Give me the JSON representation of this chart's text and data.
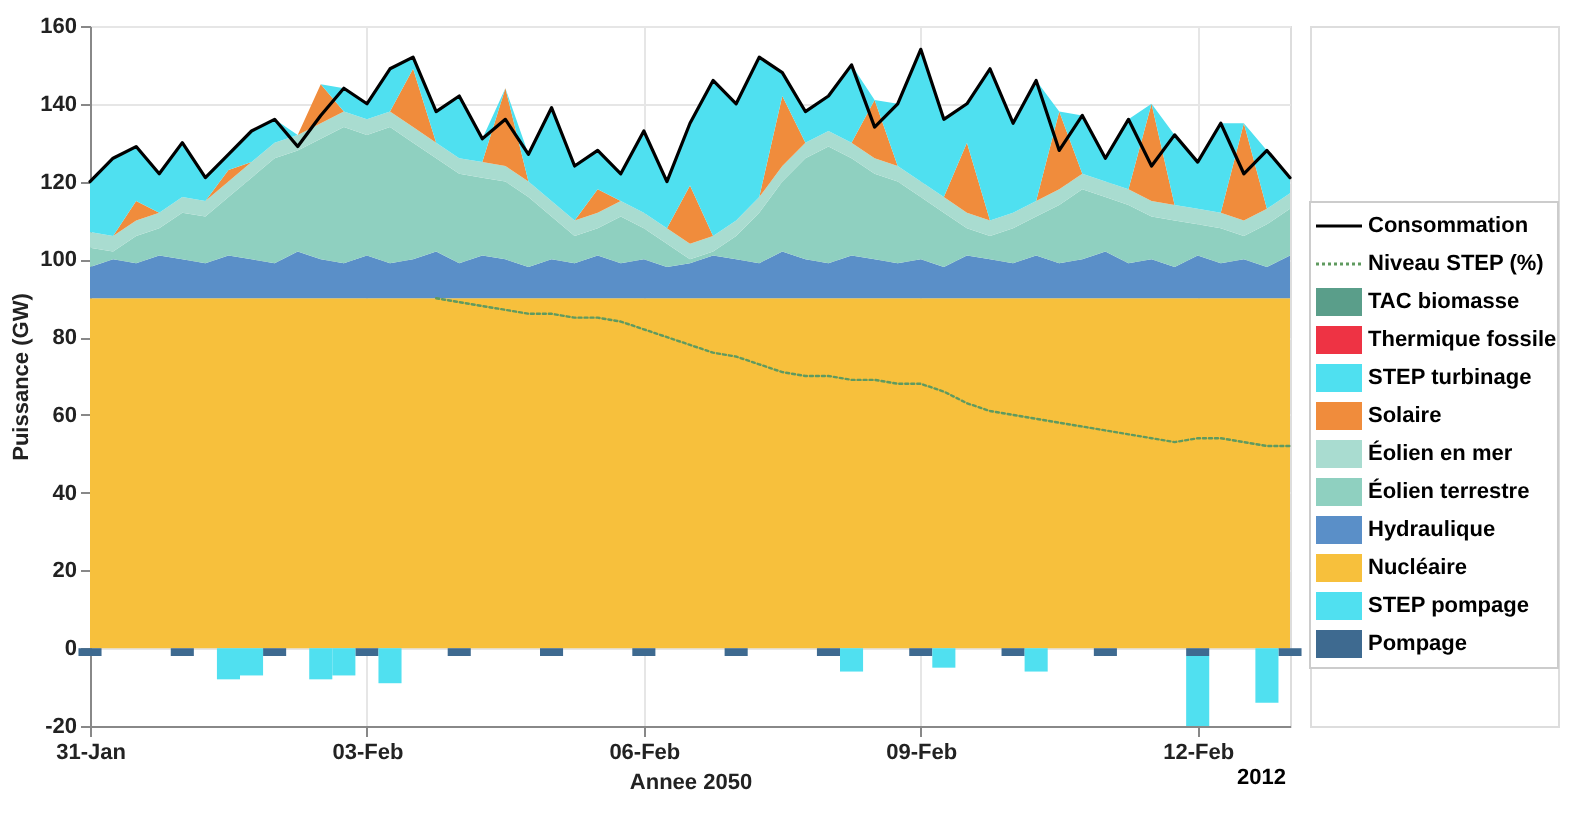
{
  "chart_data": {
    "type": "area",
    "stacked": true,
    "xlabel": "Annee 2050",
    "ylabel": "Puissance (GW)",
    "annotations": [
      "2012"
    ],
    "xlim": [
      "2012-01-31",
      "2012-02-13"
    ],
    "xticks": [
      {
        "value": "2012-01-31",
        "label": "31-Jan"
      },
      {
        "value": "2012-02-03",
        "label": "03-Feb"
      },
      {
        "value": "2012-02-06",
        "label": "06-Feb"
      },
      {
        "value": "2012-02-09",
        "label": "09-Feb"
      },
      {
        "value": "2012-02-12",
        "label": "12-Feb"
      }
    ],
    "ylim": [
      -20,
      160
    ],
    "yticks": [
      -20,
      0,
      20,
      40,
      60,
      80,
      100,
      120,
      140,
      160
    ],
    "grid": true,
    "legend": "right",
    "x": [
      "2012-01-31T00:00",
      "2012-01-31T06:00",
      "2012-01-31T12:00",
      "2012-01-31T18:00",
      "2012-02-01T00:00",
      "2012-02-01T06:00",
      "2012-02-01T12:00",
      "2012-02-01T18:00",
      "2012-02-02T00:00",
      "2012-02-02T06:00",
      "2012-02-02T12:00",
      "2012-02-02T18:00",
      "2012-02-03T00:00",
      "2012-02-03T06:00",
      "2012-02-03T12:00",
      "2012-02-03T18:00",
      "2012-02-04T00:00",
      "2012-02-04T06:00",
      "2012-02-04T12:00",
      "2012-02-04T18:00",
      "2012-02-05T00:00",
      "2012-02-05T06:00",
      "2012-02-05T12:00",
      "2012-02-05T18:00",
      "2012-02-06T00:00",
      "2012-02-06T06:00",
      "2012-02-06T12:00",
      "2012-02-06T18:00",
      "2012-02-07T00:00",
      "2012-02-07T06:00",
      "2012-02-07T12:00",
      "2012-02-07T18:00",
      "2012-02-08T00:00",
      "2012-02-08T06:00",
      "2012-02-08T12:00",
      "2012-02-08T18:00",
      "2012-02-09T00:00",
      "2012-02-09T06:00",
      "2012-02-09T12:00",
      "2012-02-09T18:00",
      "2012-02-10T00:00",
      "2012-02-10T06:00",
      "2012-02-10T12:00",
      "2012-02-10T18:00",
      "2012-02-11T00:00",
      "2012-02-11T06:00",
      "2012-02-11T12:00",
      "2012-02-11T18:00",
      "2012-02-12T00:00",
      "2012-02-12T06:00",
      "2012-02-12T12:00",
      "2012-02-12T18:00",
      "2012-02-13T00:00"
    ],
    "series": [
      {
        "name": "Consommation",
        "type": "line",
        "line_style": "solid",
        "color": "#000000",
        "values": [
          120,
          126,
          129,
          122,
          130,
          121,
          127,
          133,
          136,
          129,
          137,
          144,
          140,
          149,
          152,
          138,
          142,
          131,
          136,
          127,
          139,
          124,
          128,
          122,
          133,
          120,
          135,
          146,
          140,
          152,
          148,
          138,
          142,
          150,
          134,
          140,
          154,
          136,
          140,
          149,
          135,
          146,
          128,
          137,
          126,
          136,
          124,
          132,
          125,
          135,
          122,
          128,
          121
        ]
      },
      {
        "name": "Niveau STEP (%)",
        "type": "line",
        "line_style": "dotted",
        "color": "#5f9a5f",
        "values": [
          null,
          null,
          null,
          null,
          null,
          null,
          null,
          null,
          null,
          null,
          null,
          null,
          null,
          null,
          null,
          90,
          89,
          88,
          87,
          86,
          86,
          85,
          85,
          84,
          82,
          80,
          78,
          76,
          75,
          73,
          71,
          70,
          70,
          69,
          69,
          68,
          68,
          66,
          63,
          61,
          60,
          59,
          58,
          57,
          56,
          55,
          54,
          53,
          54,
          54,
          53,
          52,
          52
        ]
      },
      {
        "name": "Nucléaire",
        "color": "#f7c03c",
        "values": [
          90,
          90,
          90,
          90,
          90,
          90,
          90,
          90,
          90,
          90,
          90,
          90,
          90,
          90,
          90,
          90,
          90,
          90,
          90,
          90,
          90,
          90,
          90,
          90,
          90,
          90,
          90,
          90,
          90,
          90,
          90,
          90,
          90,
          90,
          90,
          90,
          90,
          90,
          90,
          90,
          90,
          90,
          90,
          90,
          90,
          90,
          90,
          90,
          90,
          90,
          90,
          90,
          90
        ]
      },
      {
        "name": "Hydraulique",
        "color": "#5a8fc8",
        "values": [
          8,
          10,
          9,
          11,
          10,
          9,
          11,
          10,
          9,
          12,
          10,
          9,
          11,
          9,
          10,
          12,
          9,
          11,
          10,
          8,
          10,
          9,
          11,
          9,
          10,
          8,
          9,
          11,
          10,
          9,
          12,
          10,
          9,
          11,
          10,
          9,
          10,
          8,
          11,
          10,
          9,
          11,
          9,
          10,
          12,
          9,
          10,
          8,
          11,
          9,
          10,
          8,
          11
        ]
      },
      {
        "name": "Éolien terrestre",
        "color": "#8fd0c0",
        "values": [
          5,
          2,
          7,
          7,
          12,
          12,
          15,
          21,
          27,
          26,
          31,
          35,
          31,
          35,
          30,
          24,
          23,
          20,
          20,
          18,
          11,
          7,
          7,
          12,
          8,
          6,
          1,
          1,
          6,
          13,
          18,
          26,
          30,
          25,
          22,
          21,
          16,
          14,
          7,
          6,
          9,
          10,
          15,
          18,
          14,
          15,
          11,
          12,
          8,
          9,
          6,
          11,
          12
        ]
      },
      {
        "name": "Éolien en mer",
        "color": "#a9dcd0",
        "values": [
          4,
          4,
          4,
          4,
          4,
          4,
          4,
          4,
          4,
          4,
          4,
          4,
          4,
          4,
          4,
          4,
          4,
          4,
          4,
          4,
          4,
          4,
          4,
          4,
          4,
          4,
          4,
          4,
          4,
          4,
          4,
          4,
          4,
          4,
          4,
          4,
          4,
          4,
          4,
          4,
          4,
          4,
          4,
          4,
          4,
          4,
          4,
          4,
          4,
          4,
          4,
          4,
          4
        ]
      },
      {
        "name": "Solaire",
        "color": "#f08c3c",
        "values": [
          0,
          0,
          5,
          0,
          0,
          0,
          3,
          0,
          0,
          0,
          10,
          0,
          0,
          0,
          15,
          0,
          0,
          0,
          20,
          0,
          0,
          0,
          6,
          0,
          0,
          0,
          15,
          0,
          0,
          0,
          18,
          0,
          0,
          0,
          15,
          0,
          0,
          0,
          18,
          0,
          0,
          0,
          20,
          0,
          0,
          0,
          25,
          0,
          0,
          0,
          25,
          0,
          0
        ]
      },
      {
        "name": "STEP turbinage",
        "color": "#4fe0f0",
        "values": [
          13,
          20,
          14,
          10,
          14,
          6,
          4,
          8,
          6,
          0,
          0,
          6,
          4,
          11,
          3,
          8,
          16,
          6,
          0,
          7,
          24,
          14,
          10,
          7,
          21,
          12,
          16,
          40,
          30,
          36,
          6,
          8,
          9,
          20,
          0,
          16,
          34,
          20,
          10,
          39,
          23,
          31,
          0,
          15,
          6,
          18,
          0,
          18,
          12,
          23,
          0,
          15,
          4
        ]
      },
      {
        "name": "Thermique fossile",
        "color": "#ee3344",
        "values": [
          null,
          null,
          null,
          null,
          null,
          null,
          null,
          null,
          null,
          null,
          null,
          null,
          null,
          null,
          null,
          null,
          null,
          null,
          null,
          null,
          null,
          null,
          null,
          null,
          null,
          null,
          null,
          null,
          null,
          null,
          null,
          null,
          null,
          null,
          null,
          null,
          null,
          null,
          null,
          null,
          null,
          null,
          null,
          null,
          null,
          null,
          null,
          null,
          null,
          null,
          null,
          null,
          null
        ]
      },
      {
        "name": "TAC biomasse",
        "color": "#5a9e8a",
        "values": [
          null,
          null,
          null,
          null,
          null,
          null,
          null,
          null,
          null,
          null,
          null,
          null,
          null,
          null,
          null,
          null,
          null,
          null,
          null,
          null,
          null,
          null,
          null,
          null,
          null,
          null,
          null,
          null,
          null,
          null,
          null,
          null,
          null,
          null,
          null,
          null,
          null,
          null,
          null,
          null,
          null,
          null,
          null,
          null,
          null,
          null,
          null,
          null,
          null,
          null,
          null,
          null,
          null
        ]
      },
      {
        "name": "Pompage",
        "type": "bar",
        "color": "#3e6a90",
        "values": [
          -2,
          0,
          0,
          0,
          -2,
          0,
          0,
          0,
          -2,
          0,
          0,
          0,
          -2,
          0,
          0,
          0,
          -2,
          0,
          0,
          0,
          -2,
          0,
          0,
          0,
          -2,
          0,
          0,
          0,
          -2,
          0,
          0,
          0,
          -2,
          0,
          0,
          0,
          -2,
          0,
          0,
          0,
          -2,
          0,
          0,
          0,
          -2,
          0,
          0,
          0,
          -2,
          0,
          0,
          0,
          -2
        ]
      },
      {
        "name": "STEP pompage",
        "type": "bar",
        "color": "#50e0f0",
        "values": [
          0,
          0,
          0,
          0,
          0,
          0,
          -8,
          -7,
          0,
          0,
          -8,
          -7,
          0,
          -9,
          0,
          0,
          0,
          0,
          0,
          0,
          0,
          0,
          0,
          0,
          0,
          0,
          0,
          0,
          0,
          0,
          0,
          0,
          0,
          -6,
          0,
          0,
          0,
          -5,
          0,
          0,
          0,
          -6,
          0,
          0,
          0,
          0,
          0,
          0,
          -18,
          0,
          0,
          -14,
          0
        ]
      }
    ]
  }
}
